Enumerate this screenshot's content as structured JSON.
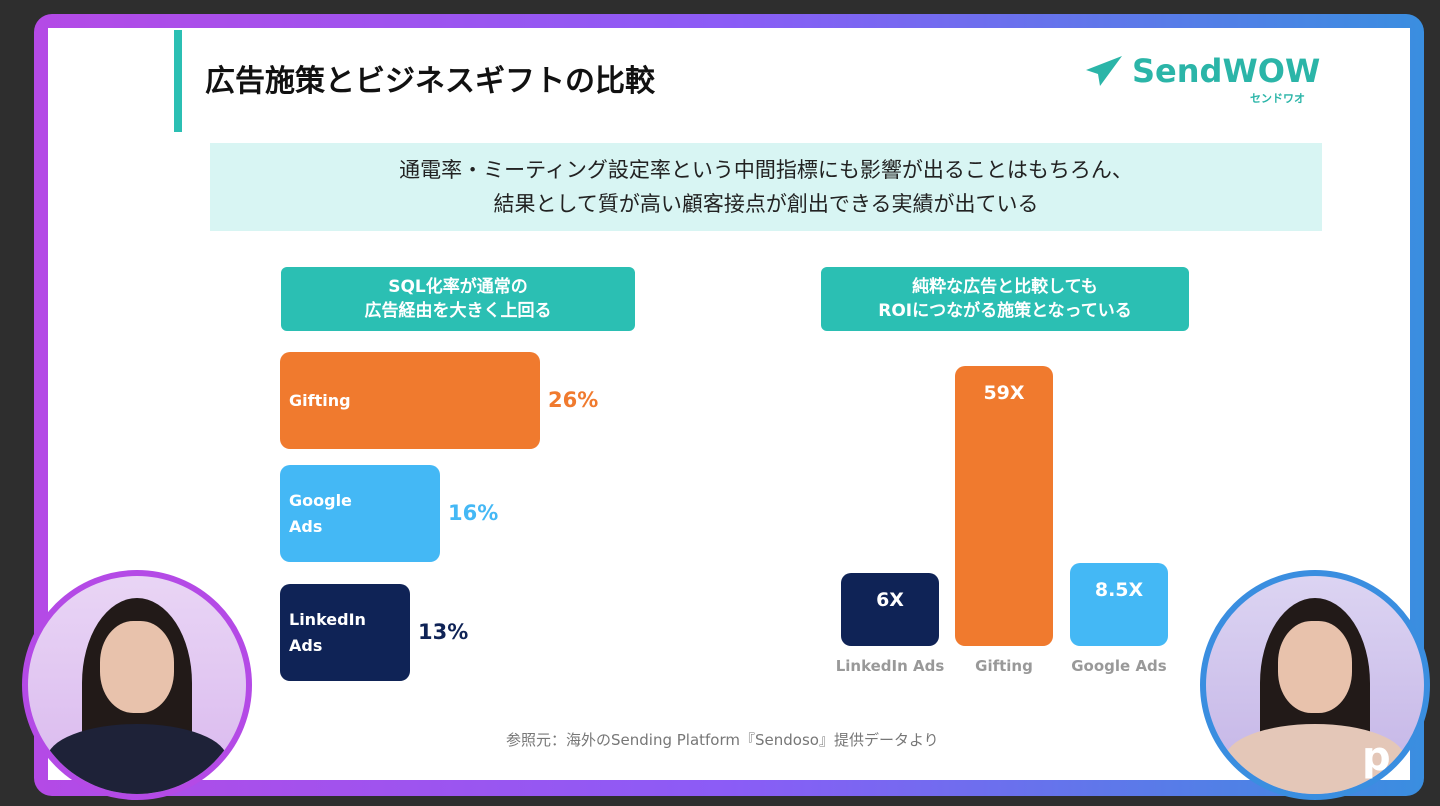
{
  "slide": {
    "title": "広告施策とビジネスギフトの比較",
    "logo": {
      "name": "SendWOW",
      "sub": "センドワオ"
    },
    "banner": [
      "通電率・ミーティング設定率という中間指標にも影響が出ることはもちろん、",
      "結果として質が高い顧客接点が創出できる実績が出ている"
    ],
    "left_heading": [
      "SQL化率が通常の",
      "広告経由を大きく上回る"
    ],
    "right_heading": [
      "純粋な広告と比較しても",
      "ROIにつながる施策となっている"
    ],
    "source": "参照元：海外のSending Platform『Sendoso』提供データより"
  },
  "chart_data": [
    {
      "type": "bar",
      "orientation": "horizontal",
      "title": "SQL化率",
      "categories": [
        "Gifting",
        "Google Ads",
        "LinkedIn Ads"
      ],
      "values": [
        26,
        16,
        13
      ],
      "labels": [
        "26%",
        "16%",
        "13%"
      ],
      "colors": [
        "#f07a2e",
        "#44b8f5",
        "#0f2356"
      ]
    },
    {
      "type": "bar",
      "orientation": "vertical",
      "title": "ROI",
      "categories": [
        "LinkedIn Ads",
        "Gifting",
        "Google Ads"
      ],
      "values": [
        6,
        59,
        8.5
      ],
      "labels": [
        "6X",
        "59X",
        "8.5X"
      ],
      "colors": [
        "#0f2356",
        "#f07a2e",
        "#44b8f5"
      ]
    }
  ],
  "watermark": "p"
}
